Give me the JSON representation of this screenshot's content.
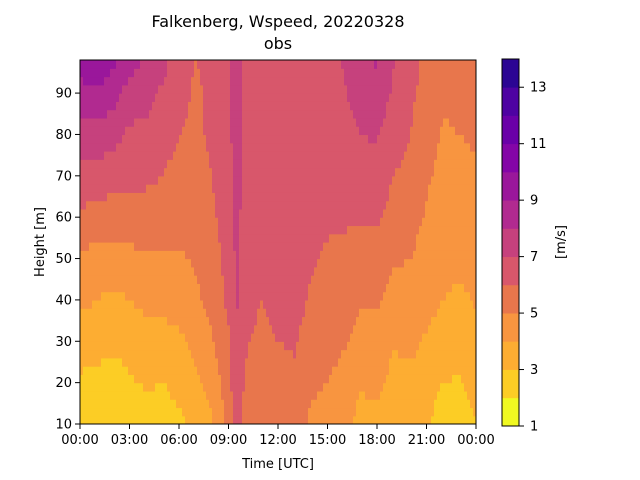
{
  "chart_data": {
    "type": "heatmap",
    "subtype": "filled-contour",
    "title": "Falkenberg, Wspeed, 20220328",
    "subtitle": "obs",
    "xlabel": "Time [UTC]",
    "ylabel": "Height [m]",
    "xlim": [
      0,
      24
    ],
    "ylim": [
      10,
      98
    ],
    "x_ticks": [
      "00:00",
      "03:00",
      "06:00",
      "09:00",
      "12:00",
      "15:00",
      "18:00",
      "21:00",
      "00:00"
    ],
    "y_ticks": [
      10,
      20,
      30,
      40,
      50,
      60,
      70,
      80,
      90
    ],
    "colorbar": {
      "label": "[m/s]",
      "levels": [
        1,
        2,
        3,
        4,
        5,
        6,
        7,
        8,
        9,
        10,
        11,
        12,
        13,
        14
      ],
      "tick_labels": [
        1,
        3,
        5,
        7,
        9,
        11,
        13
      ],
      "colors": [
        "#f0f921",
        "#fccd25",
        "#fdad32",
        "#f89540",
        "#e8764c",
        "#d8576b",
        "#c6417d",
        "#b12a90",
        "#9a179b",
        "#8405a7",
        "#6a00a8",
        "#4e02a2",
        "#2b0593"
      ],
      "colormap": "plasma"
    },
    "heights": [
      10,
      20,
      30,
      40,
      50,
      60,
      70,
      80,
      90,
      98
    ],
    "time_hours": [
      0,
      1,
      2,
      3,
      4,
      5,
      6,
      7,
      8,
      9,
      9.5,
      10,
      11,
      12,
      13,
      14,
      15,
      16,
      17,
      18,
      19,
      20,
      21,
      22,
      23,
      24
    ],
    "wind_speed_profiles": [
      [
        2.2,
        2.8,
        3.5,
        4.2,
        4.9,
        5.8,
        6.7,
        7.6,
        8.6,
        9.6
      ],
      [
        2.0,
        2.7,
        3.4,
        4.0,
        4.6,
        5.6,
        6.6,
        7.6,
        8.8,
        9.8
      ],
      [
        2.3,
        2.5,
        3.2,
        3.8,
        4.5,
        5.5,
        6.4,
        7.4,
        8.4,
        9.2
      ],
      [
        2.5,
        2.9,
        3.4,
        4.0,
        4.7,
        5.6,
        6.3,
        6.8,
        7.6,
        8.4
      ],
      [
        2.6,
        3.1,
        3.6,
        4.2,
        4.9,
        5.6,
        6.2,
        6.7,
        7.4,
        7.8
      ],
      [
        2.4,
        3.0,
        3.6,
        4.3,
        4.9,
        5.3,
        6.0,
        6.5,
        6.8,
        7.4
      ],
      [
        2.8,
        3.3,
        3.8,
        4.4,
        4.9,
        5.3,
        5.6,
        6.0,
        6.2,
        6.4
      ],
      [
        3.3,
        3.8,
        4.3,
        4.8,
        5.1,
        5.4,
        5.7,
        5.9,
        5.9,
        6.0
      ],
      [
        3.9,
        4.4,
        4.9,
        5.3,
        5.5,
        5.8,
        6.0,
        6.1,
        6.1,
        6.2
      ],
      [
        5.3,
        5.6,
        5.9,
        6.2,
        6.4,
        6.6,
        6.7,
        6.8,
        6.8,
        6.9
      ],
      [
        6.5,
        6.8,
        7.0,
        7.1,
        7.2,
        7.3,
        7.4,
        7.4,
        7.5,
        7.5
      ],
      [
        5.6,
        5.9,
        6.1,
        6.3,
        6.5,
        6.6,
        6.7,
        6.7,
        6.8,
        6.8
      ],
      [
        5.2,
        5.5,
        5.8,
        6.0,
        6.2,
        6.3,
        6.4,
        6.5,
        6.6,
        6.6
      ],
      [
        5.4,
        5.7,
        6.0,
        6.2,
        6.3,
        6.4,
        6.5,
        6.6,
        6.6,
        6.7
      ],
      [
        5.5,
        5.8,
        6.1,
        6.3,
        6.5,
        6.6,
        6.7,
        6.8,
        6.8,
        6.9
      ],
      [
        4.8,
        5.2,
        5.6,
        5.9,
        6.1,
        6.3,
        6.4,
        6.5,
        6.6,
        6.6
      ],
      [
        4.6,
        5.0,
        5.4,
        5.7,
        5.9,
        6.1,
        6.3,
        6.4,
        6.5,
        6.5
      ],
      [
        4.2,
        4.6,
        5.1,
        5.5,
        5.8,
        6.1,
        6.4,
        6.6,
        6.9,
        7.1
      ],
      [
        3.7,
        4.1,
        4.6,
        5.1,
        5.6,
        6.1,
        6.5,
        7.0,
        7.4,
        7.8
      ],
      [
        3.8,
        4.2,
        4.6,
        5.1,
        5.6,
        6.1,
        6.6,
        7.1,
        7.7,
        8.1
      ],
      [
        3.4,
        3.7,
        4.1,
        4.6,
        5.1,
        5.6,
        6.0,
        6.4,
        6.8,
        7.1
      ],
      [
        3.5,
        3.8,
        4.2,
        4.6,
        5.0,
        5.4,
        5.7,
        6.0,
        6.2,
        6.4
      ],
      [
        3.3,
        3.6,
        3.9,
        4.3,
        4.6,
        4.9,
        5.1,
        5.4,
        5.6,
        5.8
      ],
      [
        2.2,
        3.0,
        3.6,
        4.0,
        4.3,
        4.6,
        4.8,
        4.9,
        5.1,
        5.2
      ],
      [
        2.6,
        2.9,
        3.4,
        3.8,
        4.2,
        4.5,
        4.8,
        5.0,
        5.2,
        5.4
      ],
      [
        3.0,
        3.3,
        3.7,
        4.1,
        4.4,
        4.7,
        4.9,
        5.1,
        5.3,
        5.5
      ]
    ]
  }
}
